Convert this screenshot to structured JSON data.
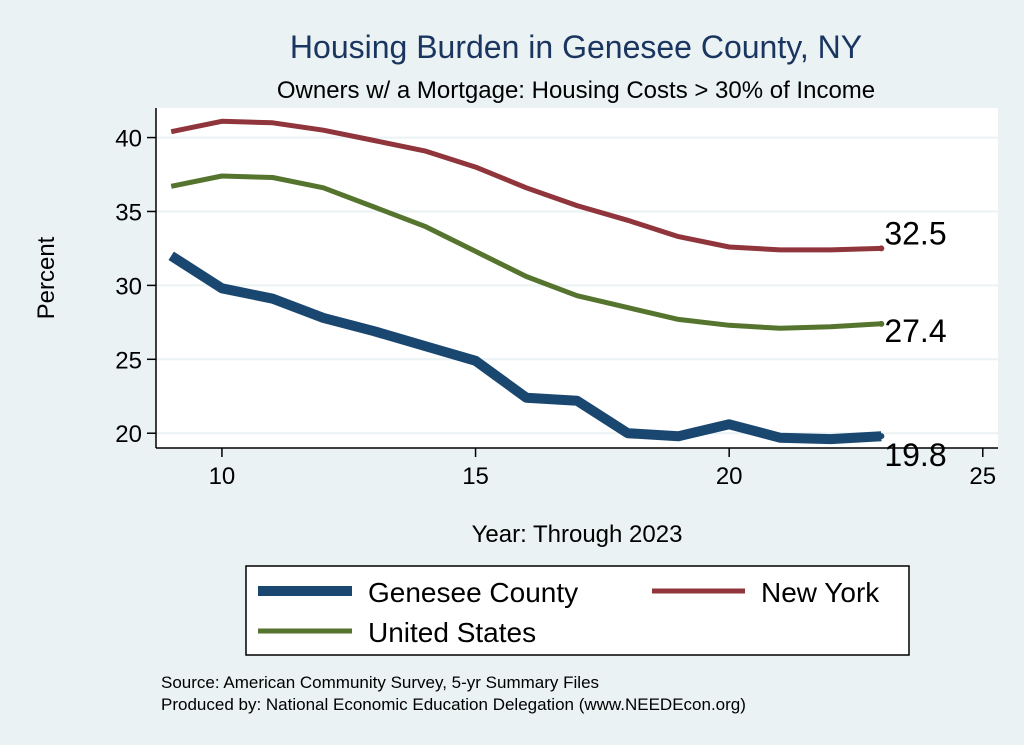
{
  "title": "Housing Burden in Genesee County, NY",
  "subtitle": "Owners w/ a Mortgage: Housing Costs > 30% of Income",
  "source_line1": "Source: American Community Survey, 5-yr Summary Files",
  "source_line2": "Produced by: National Economic Education Delegation (www.NEEDEcon.org)",
  "colors": {
    "background": "#eaf2f3",
    "plot_background": "#ffffff",
    "gridline": "#eaf2f3",
    "title": "#1a3660",
    "genesee": "#1a476f",
    "new_york": "#90353b",
    "united_states": "#55752f"
  },
  "chart_data": {
    "type": "line",
    "title": "Housing Burden in Genesee County, NY",
    "subtitle": "Owners w/ a Mortgage: Housing Costs > 30% of Income",
    "xlabel": "Year: Through 2023",
    "ylabel": "Percent",
    "xlim": [
      8.7,
      25.3
    ],
    "ylim": [
      19.0,
      42.0
    ],
    "x_ticks": [
      10,
      15,
      20,
      25
    ],
    "y_ticks": [
      20,
      25,
      30,
      35,
      40
    ],
    "grid": "horizontal",
    "legend_position": "bottom",
    "x": [
      9,
      10,
      11,
      12,
      13,
      14,
      15,
      16,
      17,
      18,
      19,
      20,
      21,
      22,
      23
    ],
    "series": [
      {
        "name": "Genesee County",
        "color": "#1a476f",
        "line_weight": "thick",
        "values": [
          32.0,
          29.8,
          29.1,
          27.8,
          26.9,
          25.9,
          24.9,
          22.4,
          22.2,
          20.0,
          19.8,
          20.6,
          19.7,
          19.6,
          19.8
        ],
        "end_label": "19.8"
      },
      {
        "name": "New York",
        "color": "#90353b",
        "line_weight": "medium",
        "values": [
          40.4,
          41.1,
          41.0,
          40.5,
          39.8,
          39.1,
          38.0,
          36.6,
          35.4,
          34.4,
          33.3,
          32.6,
          32.4,
          32.4,
          32.5
        ],
        "end_label": "32.5"
      },
      {
        "name": "United States",
        "color": "#55752f",
        "line_weight": "medium",
        "values": [
          36.7,
          37.4,
          37.3,
          36.6,
          35.3,
          34.0,
          32.3,
          30.6,
          29.3,
          28.5,
          27.7,
          27.3,
          27.1,
          27.2,
          27.4
        ],
        "end_label": "27.4"
      }
    ]
  }
}
